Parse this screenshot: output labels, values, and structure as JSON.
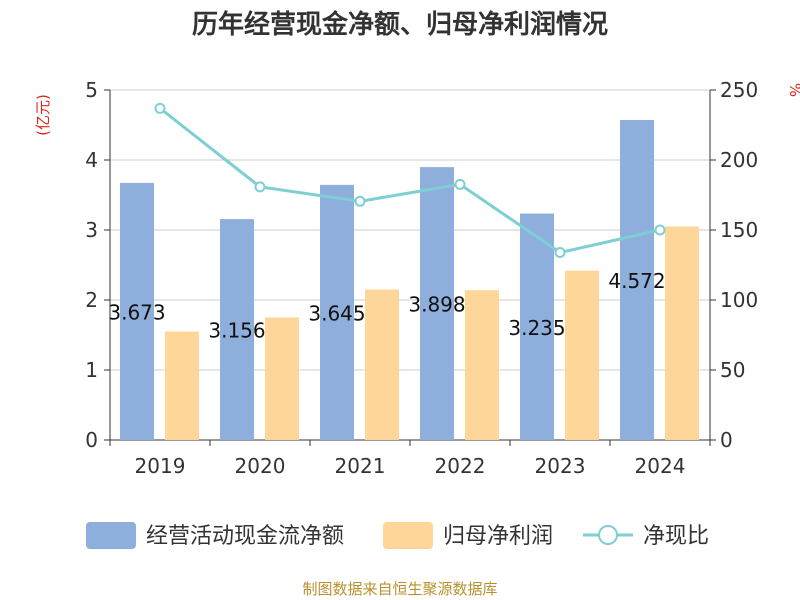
{
  "chart_data": {
    "type": "bar",
    "title": "历年经营现金净额、归母净利润情况",
    "categories": [
      "2019",
      "2020",
      "2021",
      "2022",
      "2023",
      "2024"
    ],
    "series": [
      {
        "name": "经营活动现金流净额",
        "type": "bar",
        "axis": "left",
        "values": [
          3.673,
          3.156,
          3.645,
          3.898,
          3.235,
          4.572
        ],
        "data_labels": [
          "3.673",
          "3.156",
          "3.645",
          "3.898",
          "3.235",
          "4.572"
        ],
        "color": "#8eaedb"
      },
      {
        "name": "归母净利润",
        "type": "bar",
        "axis": "left",
        "values": [
          1.55,
          1.75,
          2.15,
          2.14,
          2.42,
          3.05
        ],
        "color": "#ffd699"
      },
      {
        "name": "净现比",
        "type": "line",
        "axis": "right",
        "values": [
          236.9,
          180.8,
          170.5,
          182.6,
          133.9,
          150.0
        ],
        "color": "#7ecfd4"
      }
    ],
    "y_left": {
      "unit": "(亿元)",
      "min": 0,
      "max": 5,
      "ticks": [
        "0",
        "1",
        "2",
        "3",
        "4",
        "5"
      ],
      "unit_color": "#d9261c"
    },
    "y_right": {
      "unit": "%",
      "min": 0,
      "max": 250,
      "ticks": [
        "0",
        "50",
        "100",
        "150",
        "200",
        "250"
      ],
      "unit_color": "#d9261c"
    },
    "grid": true,
    "legend_position": "bottom"
  },
  "source": {
    "text": "制图数据来自恒生聚源数据库",
    "color": "#b8912f"
  }
}
